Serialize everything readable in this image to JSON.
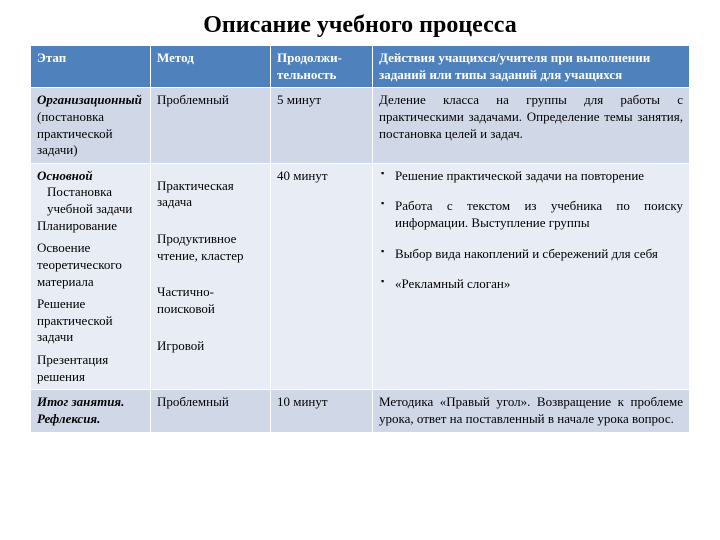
{
  "title": "Описание учебного процесса",
  "columns": {
    "c1": "Этап",
    "c2": "Метод",
    "c3": "Продолжи-тельность",
    "c4": "Действия учащихся/учителя при выполнении заданий или типы заданий для учащихся"
  },
  "row1": {
    "stage_title": "Организационный",
    "stage_sub": "(постановка практической задачи)",
    "method": "Проблемный",
    "duration": "5 минут",
    "actions": "Деление класса на группы  для работы с практическими задачами. Определение темы занятия,  постановка целей и задач."
  },
  "row2": {
    "stage_title": "Основной",
    "stage_subs": {
      "a": "Постановка учебной задачи",
      "b": "Планирование",
      "c": "Освоение теоретического материала",
      "d": "Решение практической задачи",
      "e": "Презентация решения"
    },
    "methods": {
      "a": "Практическая задача",
      "b": "Продуктивное чтение, кластер",
      "c": "Частично-поисковой",
      "d": "Игровой"
    },
    "duration": "40 минут",
    "actions": {
      "a": "Решение практической задачи на повторение",
      "b": "Работа с текстом из  учебника  по поиску информации. Выступление группы",
      "c": "Выбор вида накоплений и сбережений для себя",
      "d": "«Рекламный слоган»"
    }
  },
  "row3": {
    "stage_title": "Итог занятия. Рефлексия.",
    "method": "Проблемный",
    "duration": "10 минут",
    "actions": "Методика «Правый угол». Возвращение к проблеме урока, ответ на поставленный в начале урока вопрос."
  }
}
